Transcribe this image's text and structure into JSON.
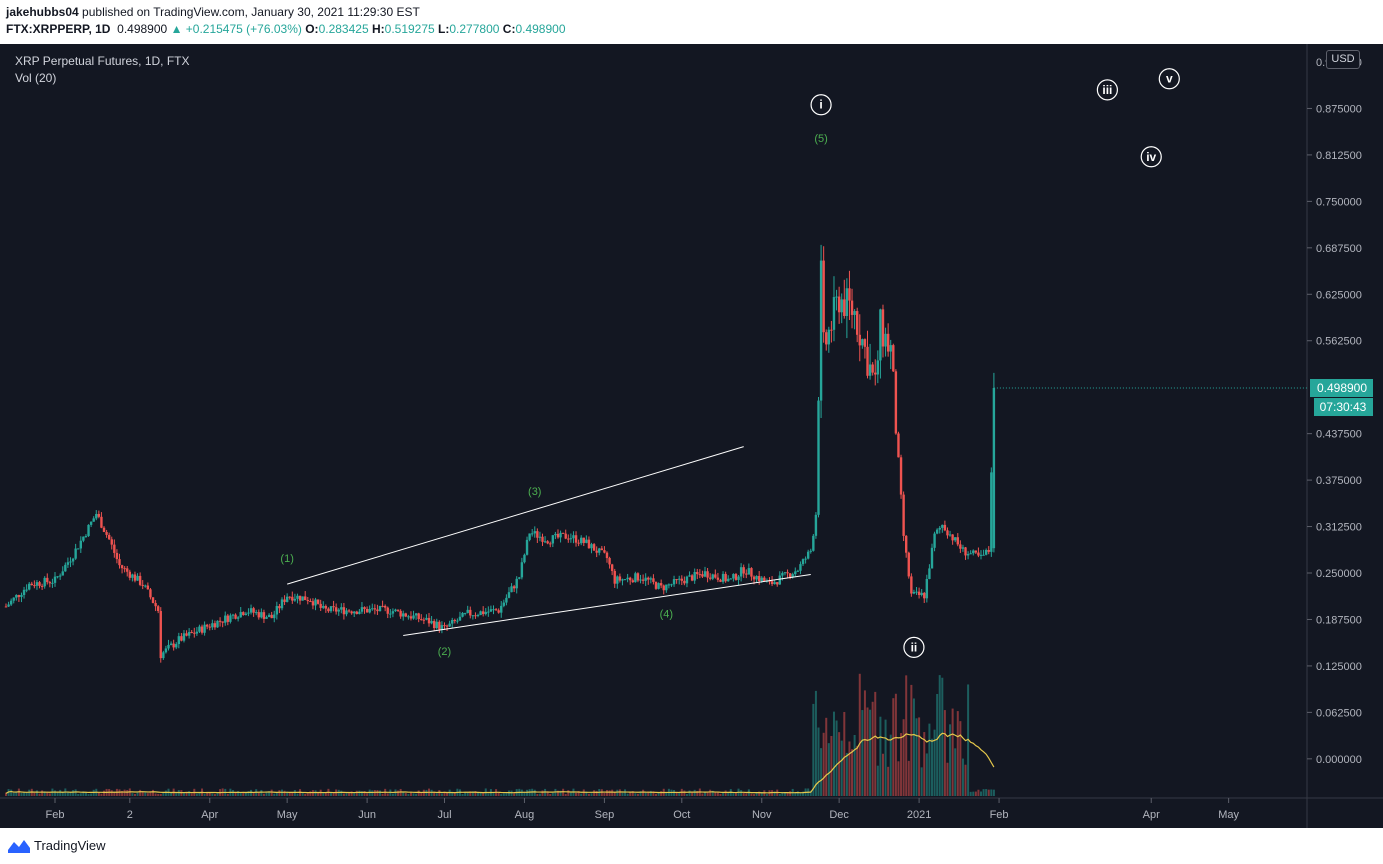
{
  "header": {
    "author": "jakehubbs04",
    "published_text": "published on TradingView.com, January 30, 2021 11:29:30 EST",
    "symbol_interval": "FTX:XRPPERP, 1D",
    "last_price": "0.498900",
    "change": "▲ +0.215475 (+76.03%)",
    "open_label": "O:",
    "open_value": "0.283425",
    "high_label": "H:",
    "high_value": "0.519275",
    "low_label": "L:",
    "low_value": "0.277800",
    "close_label": "C:",
    "close_value": "0.498900"
  },
  "legend": {
    "title": "XRP Perpetual Futures, 1D, FTX",
    "indicator": "Vol (20)"
  },
  "currency_button": "USD",
  "footer": {
    "brand": "TradingView"
  },
  "colors": {
    "background": "#131722",
    "up": "#26a69a",
    "down": "#ef5350",
    "wave_label": "#4caf50",
    "trendline": "#ffffff",
    "volume_ma": "#e5c84b",
    "price_badge": "#26a69a"
  },
  "chart_data": {
    "type": "candlestick",
    "title": "XRP Perpetual Futures, 1D, FTX",
    "ylim": [
      -0.05,
      0.9375
    ],
    "y_ticks": [
      "0.875000",
      "0.812500",
      "0.750000",
      "0.687500",
      "0.625000",
      "0.562500",
      "0.437500",
      "0.375000",
      "0.312500",
      "0.250000",
      "0.187500",
      "0.125000",
      "0.062500",
      "0.000000"
    ],
    "y_top_tick_partial": "0.937500",
    "x_ticks": [
      "Feb",
      "2",
      "Apr",
      "May",
      "Jun",
      "Jul",
      "Aug",
      "Sep",
      "Oct",
      "Nov",
      "Dec",
      "2021",
      "Feb",
      "Apr",
      "May"
    ],
    "x_range": [
      "2020-01-13",
      "2021-05-31"
    ],
    "current_price_label": "0.498900",
    "countdown_label": "07:30:43",
    "price_anchors": [
      [
        "2020-01-13",
        0.205
      ],
      [
        "2020-01-22",
        0.235
      ],
      [
        "2020-02-01",
        0.24
      ],
      [
        "2020-02-08",
        0.275
      ],
      [
        "2020-02-13",
        0.305
      ],
      [
        "2020-02-17",
        0.33
      ],
      [
        "2020-02-22",
        0.295
      ],
      [
        "2020-02-26",
        0.26
      ],
      [
        "2020-03-06",
        0.235
      ],
      [
        "2020-03-12",
        0.2
      ],
      [
        "2020-03-13",
        0.14
      ],
      [
        "2020-03-20",
        0.16
      ],
      [
        "2020-04-01",
        0.18
      ],
      [
        "2020-04-15",
        0.2
      ],
      [
        "2020-04-25",
        0.19
      ],
      [
        "2020-05-01",
        0.22
      ],
      [
        "2020-05-10",
        0.215
      ],
      [
        "2020-05-15",
        0.2
      ],
      [
        "2020-06-01",
        0.2
      ],
      [
        "2020-06-10",
        0.2
      ],
      [
        "2020-06-25",
        0.185
      ],
      [
        "2020-07-01",
        0.175
      ],
      [
        "2020-07-10",
        0.195
      ],
      [
        "2020-07-22",
        0.2
      ],
      [
        "2020-07-30",
        0.245
      ],
      [
        "2020-08-03",
        0.305
      ],
      [
        "2020-08-10",
        0.295
      ],
      [
        "2020-08-18",
        0.3
      ],
      [
        "2020-08-25",
        0.29
      ],
      [
        "2020-09-02",
        0.27
      ],
      [
        "2020-09-05",
        0.24
      ],
      [
        "2020-09-15",
        0.245
      ],
      [
        "2020-09-23",
        0.23
      ],
      [
        "2020-10-01",
        0.24
      ],
      [
        "2020-10-10",
        0.25
      ],
      [
        "2020-10-20",
        0.24
      ],
      [
        "2020-10-25",
        0.255
      ],
      [
        "2020-11-04",
        0.235
      ],
      [
        "2020-11-15",
        0.255
      ],
      [
        "2020-11-20",
        0.28
      ],
      [
        "2020-11-22",
        0.33
      ],
      [
        "2020-11-23",
        0.5
      ],
      [
        "2020-11-24",
        0.65
      ],
      [
        "2020-11-25",
        0.55
      ],
      [
        "2020-12-01",
        0.62
      ],
      [
        "2020-12-07",
        0.6
      ],
      [
        "2020-12-15",
        0.5
      ],
      [
        "2020-12-17",
        0.58
      ],
      [
        "2020-12-21",
        0.55
      ],
      [
        "2020-12-23",
        0.45
      ],
      [
        "2020-12-26",
        0.3
      ],
      [
        "2020-12-29",
        0.22
      ],
      [
        "2021-01-03",
        0.22
      ],
      [
        "2021-01-07",
        0.3
      ],
      [
        "2021-01-10",
        0.315
      ],
      [
        "2021-01-18",
        0.28
      ],
      [
        "2021-01-25",
        0.27
      ],
      [
        "2021-01-28",
        0.28
      ],
      [
        "2021-01-30",
        0.4989
      ]
    ],
    "volume_ylim": [
      0,
      1
    ],
    "wave_labels": [
      {
        "text": "(1)",
        "date": "2020-05-01",
        "price": 0.265
      },
      {
        "text": "(2)",
        "date": "2020-07-01",
        "price": 0.14
      },
      {
        "text": "(3)",
        "date": "2020-08-05",
        "price": 0.355
      },
      {
        "text": "(4)",
        "date": "2020-09-25",
        "price": 0.19
      },
      {
        "text": "(5)",
        "date": "2020-11-24",
        "price": 0.83
      }
    ],
    "circle_labels": [
      {
        "text": "i",
        "date": "2020-11-24",
        "price": 0.88
      },
      {
        "text": "ii",
        "date": "2020-12-30",
        "price": 0.15
      },
      {
        "text": "iii",
        "date": "2021-03-15",
        "price": 0.9
      },
      {
        "text": "iv",
        "date": "2021-04-01",
        "price": 0.81
      },
      {
        "text": "v",
        "date": "2021-04-08",
        "price": 0.915
      }
    ],
    "trendlines": [
      {
        "from": [
          "2020-05-01",
          0.235
        ],
        "to": [
          "2020-10-25",
          0.42
        ]
      },
      {
        "from": [
          "2020-06-15",
          0.166
        ],
        "to": [
          "2020-11-20",
          0.248
        ]
      }
    ]
  }
}
